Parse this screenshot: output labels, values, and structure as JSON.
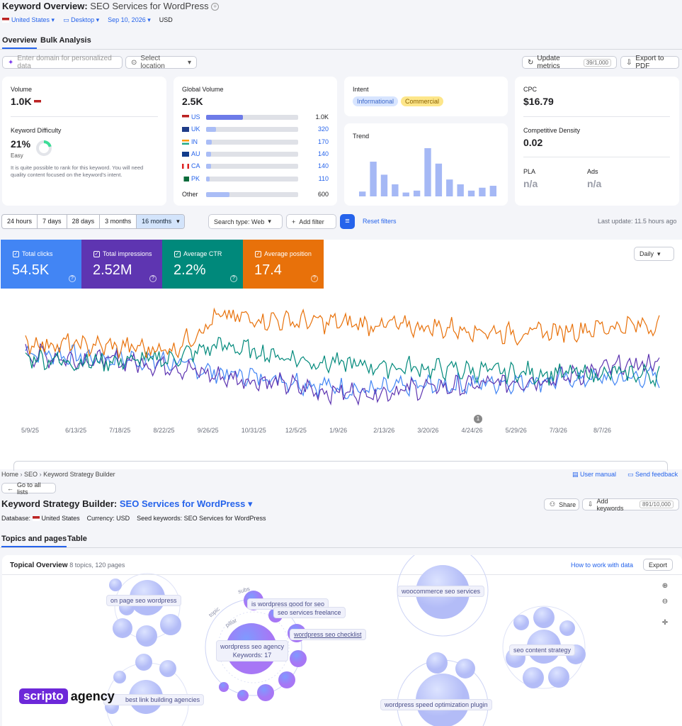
{
  "header": {
    "title": "Keyword Overview:",
    "keyword": "SEO Services for WordPress",
    "country": "United States",
    "device": "Desktop",
    "date": "Sep 10, 2026",
    "currency": "USD"
  },
  "tabs": [
    "Overview",
    "Bulk Analysis"
  ],
  "toolbar": {
    "domain_placeholder": "Enter domain for personalized data",
    "location_placeholder": "Select location",
    "update_label": "Update metrics",
    "update_count": "39/1,000",
    "export_label": "Export to PDF"
  },
  "volume": {
    "label": "Volume",
    "value": "1.0K"
  },
  "difficulty": {
    "label": "Keyword Difficulty",
    "value": "21%",
    "level": "Easy",
    "percent": 21,
    "desc": "It is quite possible to rank for this keyword. You will need quality content focused on the keyword's intent."
  },
  "global": {
    "label": "Global Volume",
    "value": "2.5K",
    "rows": [
      {
        "code": "US",
        "value": "1.0K",
        "fraction": 0.4
      },
      {
        "code": "UK",
        "value": "320",
        "fraction": 0.11
      },
      {
        "code": "IN",
        "value": "170",
        "fraction": 0.06
      },
      {
        "code": "AU",
        "value": "140",
        "fraction": 0.05
      },
      {
        "code": "CA",
        "value": "140",
        "fraction": 0.05
      },
      {
        "code": "PK",
        "value": "110",
        "fraction": 0.04
      }
    ],
    "other_label": "Other",
    "other_value": "600",
    "other_fraction": 0.25
  },
  "intent": {
    "label": "Intent",
    "tags": [
      "Informational",
      "Commercial"
    ]
  },
  "trend": {
    "label": "Trend",
    "values": [
      0.1,
      0.72,
      0.45,
      0.25,
      0.08,
      0.12,
      1.0,
      0.68,
      0.35,
      0.25,
      0.12,
      0.18,
      0.22
    ]
  },
  "cpc": {
    "label": "CPC",
    "value": "$16.79"
  },
  "density": {
    "label": "Competitive Density",
    "value": "0.02"
  },
  "pla": {
    "label": "PLA",
    "value": "n/a"
  },
  "ads": {
    "label": "Ads",
    "value": "n/a"
  },
  "filters": {
    "ranges": [
      "24 hours",
      "7 days",
      "28 days",
      "3 months",
      "16 months"
    ],
    "search_type": "Search type: Web",
    "add_filter": "Add filter",
    "reset": "Reset filters",
    "last_update": "Last update: 11.5 hours ago"
  },
  "metrics": [
    {
      "label": "Total clicks",
      "value": "54.5K",
      "color": "#4285f4"
    },
    {
      "label": "Total impressions",
      "value": "2.52M",
      "color": "#5e35b1"
    },
    {
      "label": "Average CTR",
      "value": "2.2%",
      "color": "#00897b"
    },
    {
      "label": "Average position",
      "value": "17.4",
      "color": "#e8710a"
    }
  ],
  "granularity": "Daily",
  "chart_data": {
    "type": "line",
    "x": [
      "5/9/25",
      "6/13/25",
      "7/18/25",
      "8/22/25",
      "9/26/25",
      "10/31/25",
      "12/5/25",
      "1/9/26",
      "2/13/26",
      "3/20/26",
      "4/24/26",
      "5/29/26",
      "7/3/26",
      "8/7/26"
    ],
    "series": [
      {
        "name": "Total clicks",
        "values": [
          0.65,
          0.6,
          0.58,
          0.55,
          0.45,
          0.42,
          0.35,
          0.3,
          0.34,
          0.36,
          0.38,
          0.4,
          0.41,
          0.42
        ]
      },
      {
        "name": "Total impressions",
        "values": [
          0.62,
          0.58,
          0.56,
          0.52,
          0.42,
          0.38,
          0.3,
          0.28,
          0.32,
          0.34,
          0.38,
          0.42,
          0.5,
          0.55
        ]
      },
      {
        "name": "Average CTR",
        "values": [
          0.6,
          0.55,
          0.56,
          0.58,
          0.7,
          0.62,
          0.55,
          0.52,
          0.5,
          0.48,
          0.46,
          0.45,
          0.45,
          0.44
        ]
      },
      {
        "name": "Average position",
        "values": [
          0.72,
          0.7,
          0.68,
          0.66,
          0.95,
          0.92,
          0.9,
          0.88,
          0.86,
          0.84,
          0.8,
          0.82,
          0.86,
          0.88
        ]
      }
    ],
    "annotation": "1"
  },
  "breadcrumb": [
    "Home",
    "SEO",
    "Keyword Strategy Builder"
  ],
  "links": {
    "manual": "User manual",
    "feedback": "Send feedback",
    "back": "Go to all lists"
  },
  "ksb": {
    "title": "Keyword Strategy Builder:",
    "name": "SEO Services for WordPress",
    "database_label": "Database:",
    "database": "United States",
    "currency": "Currency: USD",
    "seeds": "Seed keywords: SEO Services for WordPress",
    "share": "Share",
    "add_keywords": "Add keywords",
    "kw_count": "891/10,000"
  },
  "ksb_tabs": [
    "Topics and pages",
    "Table"
  ],
  "topical": {
    "title": "Topical Overview",
    "meta": "8 topics, 120 pages",
    "how": "How to work with data",
    "export": "Export",
    "labels": [
      "on page seo wordpress",
      "is wordpress good for seo",
      "seo services freelance",
      "wordpress seo checklist",
      "woocommerce seo services",
      "seo content strategy",
      "wordpress speed optimization plugin",
      "best link building agencies"
    ],
    "pillar": "wordpress seo agency",
    "pillar_kw": "Keywords: 17",
    "ring_words": [
      "topic",
      "pillar",
      "subs"
    ]
  },
  "watermark": {
    "a": "scripto",
    "b": "agency"
  }
}
